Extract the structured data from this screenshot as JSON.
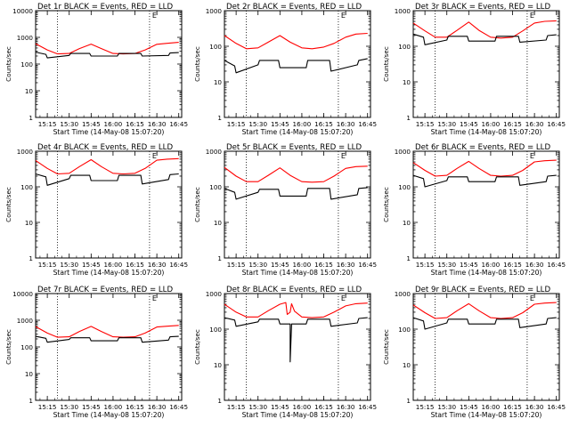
{
  "colors": {
    "background": "#ffffff",
    "axes": "#000000",
    "events": "#000000",
    "lld": "#ff0000"
  },
  "chart_data": [
    {
      "type": "line",
      "title": "Det 1r BLACK = Events, RED = LLD",
      "xlabel": "Start Time (14-May-08 15:07:20)",
      "ylabel": "Counts/sec",
      "xticks": [
        "15:15",
        "15:30",
        "15:45",
        "16:00",
        "16:15",
        "16:30",
        "16:45"
      ],
      "xlim": [
        "15:07",
        "16:47"
      ],
      "yscale": "log",
      "ylim": [
        1,
        10000
      ],
      "yticks": [
        "1",
        "10",
        "100",
        "1000",
        "10000"
      ],
      "marker": "E",
      "dotted_lines_at": [
        "15:22",
        "16:25"
      ],
      "series": [
        {
          "color": "#ff0000",
          "x": [
            "15:07",
            "15:15",
            "15:22",
            "15:30",
            "15:37",
            "15:45",
            "15:52",
            "16:00",
            "16:07",
            "16:15",
            "16:22",
            "16:30",
            "16:37",
            "16:45"
          ],
          "y": [
            580,
            340,
            240,
            250,
            380,
            560,
            380,
            250,
            240,
            250,
            340,
            550,
            600,
            650
          ]
        },
        {
          "color": "#000000",
          "x": [
            "15:07",
            "15:14",
            "15:15",
            "15:30",
            "15:31",
            "15:44",
            "15:45",
            "16:03",
            "16:04",
            "16:19",
            "16:20",
            "16:38",
            "16:39",
            "16:45"
          ],
          "y": [
            280,
            230,
            170,
            210,
            250,
            250,
            200,
            200,
            250,
            250,
            200,
            210,
            260,
            270
          ]
        }
      ]
    },
    {
      "type": "line",
      "title": "Det 2r BLACK = Events, RED = LLD",
      "xlabel": "Start Time (14-May-08 15:07:20)",
      "ylabel": "Counts/sec",
      "xticks": [
        "15:15",
        "15:30",
        "15:45",
        "16:00",
        "16:15",
        "16:30",
        "16:45"
      ],
      "xlim": [
        "15:07",
        "16:47"
      ],
      "yscale": "log",
      "ylim": [
        1,
        1000
      ],
      "yticks": [
        "1",
        "10",
        "100",
        "1000"
      ],
      "marker": "E",
      "dotted_lines_at": [
        "15:22",
        "16:25"
      ],
      "series": [
        {
          "color": "#ff0000",
          "x": [
            "15:07",
            "15:15",
            "15:22",
            "15:30",
            "15:37",
            "15:45",
            "15:52",
            "16:00",
            "16:07",
            "16:15",
            "16:22",
            "16:30",
            "16:37",
            "16:45"
          ],
          "y": [
            200,
            120,
            85,
            90,
            130,
            200,
            130,
            90,
            85,
            95,
            120,
            180,
            220,
            230
          ]
        },
        {
          "color": "#000000",
          "x": [
            "15:07",
            "15:14",
            "15:15",
            "15:30",
            "15:31",
            "15:44",
            "15:45",
            "16:03",
            "16:04",
            "16:19",
            "16:20",
            "16:38",
            "16:39",
            "16:45"
          ],
          "y": [
            40,
            28,
            18,
            30,
            40,
            40,
            25,
            25,
            40,
            40,
            20,
            30,
            40,
            45
          ]
        }
      ]
    },
    {
      "type": "line",
      "title": "Det 3r BLACK = Events, RED = LLD",
      "xlabel": "Start Time (14-May-08 15:07:20)",
      "ylabel": "Counts/sec",
      "xticks": [
        "15:15",
        "15:30",
        "15:45",
        "16:00",
        "16:15",
        "16:30",
        "16:45"
      ],
      "xlim": [
        "15:07",
        "16:47"
      ],
      "yscale": "log",
      "ylim": [
        1,
        1000
      ],
      "yticks": [
        "1",
        "10",
        "100",
        "1000"
      ],
      "marker": "E",
      "dotted_lines_at": [
        "15:22",
        "16:25"
      ],
      "series": [
        {
          "color": "#ff0000",
          "x": [
            "15:07",
            "15:15",
            "15:22",
            "15:30",
            "15:37",
            "15:45",
            "15:52",
            "16:00",
            "16:07",
            "16:15",
            "16:22",
            "16:30",
            "16:37",
            "16:45"
          ],
          "y": [
            450,
            270,
            180,
            180,
            280,
            480,
            280,
            180,
            170,
            180,
            270,
            450,
            500,
            520
          ]
        },
        {
          "color": "#000000",
          "x": [
            "15:07",
            "15:14",
            "15:15",
            "15:30",
            "15:31",
            "15:44",
            "15:45",
            "16:03",
            "16:04",
            "16:19",
            "16:20",
            "16:38",
            "16:39",
            "16:45"
          ],
          "y": [
            220,
            180,
            110,
            150,
            190,
            190,
            140,
            140,
            190,
            190,
            130,
            150,
            200,
            210
          ]
        }
      ]
    },
    {
      "type": "line",
      "title": "Det 4r BLACK = Events, RED = LLD",
      "xlabel": "Start Time (14-May-08 15:07:20)",
      "ylabel": "Counts/sec",
      "xticks": [
        "15:15",
        "15:30",
        "15:45",
        "16:00",
        "16:15",
        "16:30",
        "16:45"
      ],
      "xlim": [
        "15:07",
        "16:47"
      ],
      "yscale": "log",
      "ylim": [
        1,
        1000
      ],
      "yticks": [
        "1",
        "10",
        "100",
        "1000"
      ],
      "marker": "E",
      "dotted_lines_at": [
        "15:22",
        "16:25"
      ],
      "series": [
        {
          "color": "#ff0000",
          "x": [
            "15:07",
            "15:15",
            "15:22",
            "15:30",
            "15:37",
            "15:45",
            "15:52",
            "16:00",
            "16:07",
            "16:15",
            "16:22",
            "16:30",
            "16:37",
            "16:45"
          ],
          "y": [
            550,
            330,
            230,
            240,
            370,
            580,
            370,
            240,
            230,
            240,
            330,
            560,
            600,
            620
          ]
        },
        {
          "color": "#000000",
          "x": [
            "15:07",
            "15:14",
            "15:15",
            "15:30",
            "15:31",
            "15:44",
            "15:45",
            "16:03",
            "16:04",
            "16:19",
            "16:20",
            "16:38",
            "16:39",
            "16:45"
          ],
          "y": [
            230,
            190,
            110,
            170,
            210,
            210,
            150,
            150,
            210,
            210,
            120,
            160,
            220,
            230
          ]
        }
      ]
    },
    {
      "type": "line",
      "title": "Det 5r BLACK = Events, RED = LLD",
      "xlabel": "Start Time (14-May-08 15:07:20)",
      "ylabel": "Counts/sec",
      "xticks": [
        "15:15",
        "15:30",
        "15:45",
        "16:00",
        "16:15",
        "16:30",
        "16:45"
      ],
      "xlim": [
        "15:07",
        "16:47"
      ],
      "yscale": "log",
      "ylim": [
        1,
        1000
      ],
      "yticks": [
        "1",
        "10",
        "100",
        "1000"
      ],
      "marker": "E",
      "dotted_lines_at": [
        "15:22",
        "16:25"
      ],
      "series": [
        {
          "color": "#ff0000",
          "x": [
            "15:07",
            "15:15",
            "15:22",
            "15:30",
            "15:37",
            "15:45",
            "15:52",
            "16:00",
            "16:07",
            "16:15",
            "16:22",
            "16:30",
            "16:37",
            "16:45"
          ],
          "y": [
            350,
            200,
            140,
            140,
            210,
            340,
            210,
            140,
            135,
            140,
            200,
            330,
            370,
            380
          ]
        },
        {
          "color": "#000000",
          "x": [
            "15:07",
            "15:14",
            "15:15",
            "15:30",
            "15:31",
            "15:44",
            "15:45",
            "16:03",
            "16:04",
            "16:19",
            "16:20",
            "16:38",
            "16:39",
            "16:45"
          ],
          "y": [
            90,
            70,
            45,
            70,
            85,
            85,
            55,
            55,
            90,
            90,
            45,
            60,
            90,
            95
          ]
        }
      ]
    },
    {
      "type": "line",
      "title": "Det 6r BLACK = Events, RED = LLD",
      "xlabel": "Start Time (14-May-08 15:07:20)",
      "ylabel": "Counts/sec",
      "xticks": [
        "15:15",
        "15:30",
        "15:45",
        "16:00",
        "16:15",
        "16:30",
        "16:45"
      ],
      "xlim": [
        "15:07",
        "16:47"
      ],
      "yscale": "log",
      "ylim": [
        1,
        1000
      ],
      "yticks": [
        "1",
        "10",
        "100",
        "1000"
      ],
      "marker": "E",
      "dotted_lines_at": [
        "15:22",
        "16:25"
      ],
      "series": [
        {
          "color": "#ff0000",
          "x": [
            "15:07",
            "15:15",
            "15:22",
            "15:30",
            "15:37",
            "15:45",
            "15:52",
            "16:00",
            "16:07",
            "16:15",
            "16:22",
            "16:30",
            "16:37",
            "16:45"
          ],
          "y": [
            480,
            290,
            200,
            210,
            330,
            520,
            330,
            210,
            200,
            210,
            290,
            500,
            540,
            560
          ]
        },
        {
          "color": "#000000",
          "x": [
            "15:07",
            "15:14",
            "15:15",
            "15:30",
            "15:31",
            "15:44",
            "15:45",
            "16:03",
            "16:04",
            "16:19",
            "16:20",
            "16:38",
            "16:39",
            "16:45"
          ],
          "y": [
            210,
            170,
            100,
            150,
            190,
            190,
            140,
            140,
            190,
            190,
            110,
            140,
            200,
            210
          ]
        }
      ]
    },
    {
      "type": "line",
      "title": "Det 7r BLACK = Events, RED = LLD",
      "xlabel": "Start Time (14-May-08 15:07:20)",
      "ylabel": "Counts/sec",
      "xticks": [
        "15:15",
        "15:30",
        "15:45",
        "16:00",
        "16:15",
        "16:30",
        "16:45"
      ],
      "xlim": [
        "15:07",
        "16:47"
      ],
      "yscale": "log",
      "ylim": [
        1,
        10000
      ],
      "yticks": [
        "1",
        "10",
        "100",
        "1000",
        "10000"
      ],
      "marker": "E",
      "dotted_lines_at": [
        "15:22",
        "16:25"
      ],
      "series": [
        {
          "color": "#ff0000",
          "x": [
            "15:07",
            "15:15",
            "15:22",
            "15:30",
            "15:37",
            "15:45",
            "15:52",
            "16:00",
            "16:07",
            "16:15",
            "16:22",
            "16:30",
            "16:37",
            "16:45"
          ],
          "y": [
            580,
            330,
            230,
            240,
            380,
            590,
            380,
            240,
            230,
            240,
            330,
            560,
            600,
            640
          ]
        },
        {
          "color": "#000000",
          "x": [
            "15:07",
            "15:14",
            "15:15",
            "15:30",
            "15:31",
            "15:44",
            "15:45",
            "16:03",
            "16:04",
            "16:19",
            "16:20",
            "16:38",
            "16:39",
            "16:45"
          ],
          "y": [
            250,
            210,
            150,
            190,
            220,
            220,
            170,
            170,
            220,
            220,
            150,
            180,
            240,
            250
          ]
        }
      ]
    },
    {
      "type": "line",
      "title": "Det 8r BLACK = Events, RED = LLD",
      "xlabel": "Start Time (14-May-08 15:07:20)",
      "ylabel": "Counts/sec",
      "xticks": [
        "15:15",
        "15:30",
        "15:45",
        "16:00",
        "16:15",
        "16:30",
        "16:45"
      ],
      "xlim": [
        "15:07",
        "16:47"
      ],
      "yscale": "log",
      "ylim": [
        1,
        1000
      ],
      "yticks": [
        "1",
        "10",
        "100",
        "1000"
      ],
      "marker": "E",
      "dotted_lines_at": [
        "15:22",
        "16:25"
      ],
      "series": [
        {
          "color": "#ff0000",
          "x": [
            "15:07",
            "15:15",
            "15:22",
            "15:30",
            "15:37",
            "15:45",
            "15:49",
            "15:50",
            "15:52",
            "15:53",
            "15:55",
            "16:00",
            "16:07",
            "16:15",
            "16:22",
            "16:30",
            "16:37",
            "16:45"
          ],
          "y": [
            500,
            300,
            220,
            220,
            330,
            500,
            560,
            260,
            300,
            520,
            320,
            220,
            210,
            220,
            300,
            450,
            520,
            540
          ]
        },
        {
          "color": "#000000",
          "x": [
            "15:07",
            "15:14",
            "15:15",
            "15:30",
            "15:31",
            "15:44",
            "15:45",
            "15:52",
            "15:52",
            "15:53",
            "16:03",
            "16:04",
            "16:19",
            "16:20",
            "16:38",
            "16:39",
            "16:45"
          ],
          "y": [
            210,
            180,
            120,
            160,
            190,
            190,
            140,
            140,
            12,
            140,
            140,
            190,
            190,
            120,
            150,
            200,
            210
          ]
        }
      ]
    },
    {
      "type": "line",
      "title": "Det 9r BLACK = Events, RED = LLD",
      "xlabel": "Start Time (14-May-08 15:07:20)",
      "ylabel": "Counts/sec",
      "xticks": [
        "15:15",
        "15:30",
        "15:45",
        "16:00",
        "16:15",
        "16:30",
        "16:45"
      ],
      "xlim": [
        "15:07",
        "16:47"
      ],
      "yscale": "log",
      "ylim": [
        1,
        1000
      ],
      "yticks": [
        "1",
        "10",
        "100",
        "1000"
      ],
      "marker": "E",
      "dotted_lines_at": [
        "15:22",
        "16:25"
      ],
      "series": [
        {
          "color": "#ff0000",
          "x": [
            "15:07",
            "15:15",
            "15:22",
            "15:30",
            "15:37",
            "15:45",
            "15:52",
            "16:00",
            "16:07",
            "16:15",
            "16:22",
            "16:30",
            "16:37",
            "16:45"
          ],
          "y": [
            480,
            290,
            200,
            210,
            330,
            520,
            330,
            210,
            200,
            210,
            290,
            500,
            540,
            560
          ]
        },
        {
          "color": "#000000",
          "x": [
            "15:07",
            "15:14",
            "15:15",
            "15:30",
            "15:31",
            "15:44",
            "15:45",
            "16:03",
            "16:04",
            "16:19",
            "16:20",
            "16:38",
            "16:39",
            "16:45"
          ],
          "y": [
            210,
            170,
            100,
            150,
            190,
            190,
            140,
            140,
            190,
            190,
            110,
            140,
            200,
            210
          ]
        }
      ]
    }
  ]
}
